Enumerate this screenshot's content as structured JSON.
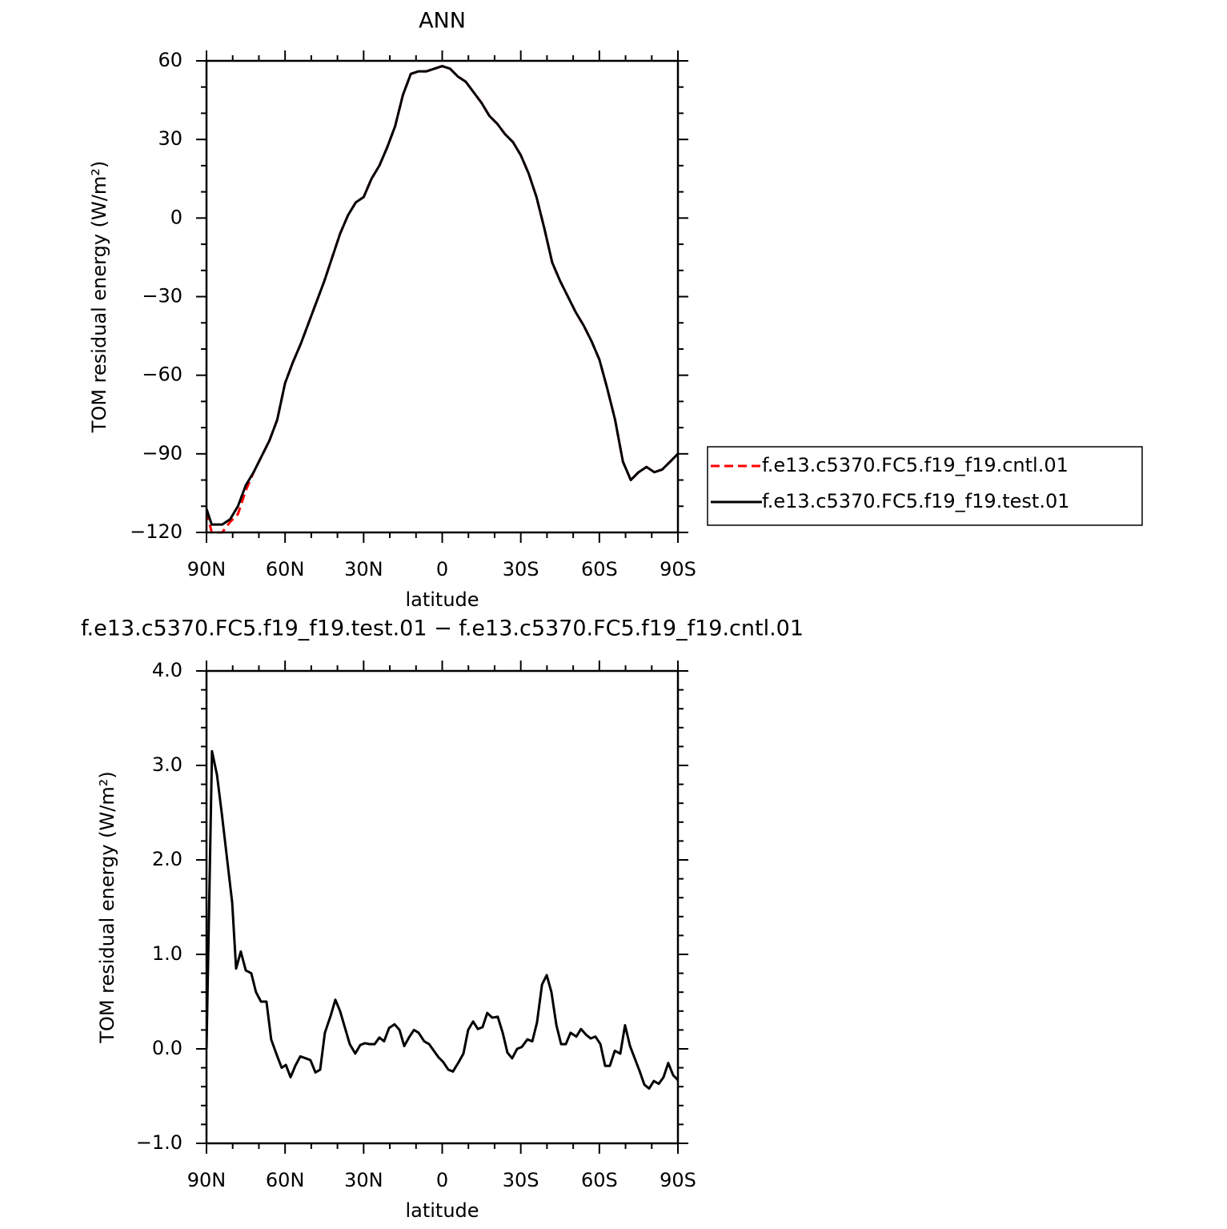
{
  "chart_data": [
    {
      "type": "line",
      "title": "ANN",
      "x_label": "latitude",
      "y_label": "TOM residual energy (W/m²)",
      "x": [
        90,
        88,
        84,
        81,
        78,
        75,
        72,
        69,
        66,
        63,
        60,
        57,
        54,
        51,
        48,
        45,
        42,
        39,
        36,
        33,
        30,
        27,
        24,
        21,
        18,
        15,
        12,
        9,
        6,
        3,
        0,
        -3,
        -6,
        -9,
        -12,
        -15,
        -18,
        -21,
        -24,
        -27,
        -30,
        -33,
        -36,
        -39,
        -42,
        -45,
        -48,
        -51,
        -54,
        -57,
        -60,
        -63,
        -66,
        -69,
        -72,
        -75,
        -78,
        -81,
        -84,
        -87,
        -90
      ],
      "series": [
        {
          "name": "f.e13.c5370.FC5.f19_f19.cntl.01",
          "color": "#ff0000",
          "line_style": "dashed",
          "values": [
            -112,
            -120,
            -120,
            -116,
            -113,
            -104,
            -97,
            -91,
            -85,
            -77,
            -63,
            -55,
            -48,
            -40,
            -32,
            -24,
            -15,
            -6,
            1,
            6,
            8,
            15,
            20,
            27,
            35,
            47,
            55,
            56,
            56,
            57,
            58,
            57,
            54,
            52,
            48,
            44,
            39,
            36,
            32,
            29,
            24,
            17,
            8,
            -4,
            -17,
            -24,
            -30,
            -36,
            -41,
            -47,
            -54,
            -65,
            -77,
            -93,
            -100,
            -97,
            -95,
            -97,
            -96,
            -93,
            -90
          ]
        },
        {
          "name": "f.e13.c5370.FC5.f19_f19.test.01",
          "color": "#000000",
          "line_style": "solid",
          "values": [
            -111,
            -117,
            -117,
            -115,
            -110,
            -102,
            -97,
            -91,
            -85,
            -77,
            -63,
            -55,
            -48,
            -40,
            -32,
            -24,
            -15,
            -6,
            1,
            6,
            8,
            15,
            20,
            27,
            35,
            47,
            55,
            56,
            56,
            57,
            58,
            57,
            54,
            52,
            48,
            44,
            39,
            36,
            32,
            29,
            24,
            17,
            8,
            -4,
            -17,
            -24,
            -30,
            -36,
            -41,
            -47,
            -54,
            -65,
            -77,
            -93,
            -100,
            -97,
            -95,
            -97,
            -96,
            -93,
            -90
          ]
        }
      ],
      "xlim": [
        90,
        -90
      ],
      "xticks": [
        {
          "value": 90,
          "label": "90N"
        },
        {
          "value": 60,
          "label": "60N"
        },
        {
          "value": 30,
          "label": "30N"
        },
        0,
        {
          "value": -30,
          "label": "30S"
        },
        {
          "value": -60,
          "label": "60S"
        },
        {
          "value": -90,
          "label": "90S"
        }
      ],
      "ylim": [
        -120,
        60
      ],
      "yticks": [
        {
          "value": -120,
          "label": "−120"
        },
        {
          "value": -90,
          "label": "−90"
        },
        {
          "value": -60,
          "label": "−60"
        },
        {
          "value": -30,
          "label": "−30"
        },
        0,
        30,
        60
      ],
      "legend": "right"
    },
    {
      "type": "line",
      "title": "f.e13.c5370.FC5.f19_f19.test.01 − f.e13.c5370.FC5.f19_f19.cntl.01",
      "x_label": "latitude",
      "y_label": "TOM residual energy (W/m²)",
      "x": [
        90,
        87.9,
        86,
        84.2,
        82.1,
        80.2,
        78.7,
        76.9,
        75,
        72.9,
        71.1,
        69.2,
        67.1,
        65.3,
        63.1,
        61.3,
        59.7,
        57.9,
        56.1,
        54.2,
        52.1,
        50.3,
        48.4,
        46.6,
        44.8,
        42.6,
        40.8,
        39,
        37.1,
        35.3,
        33.2,
        31.3,
        29.5,
        27.7,
        25.8,
        24,
        22.2,
        20.3,
        18.2,
        16.3,
        14.5,
        12.7,
        10.8,
        9,
        6.9,
        5,
        3.2,
        1.4,
        -0.4,
        -2.3,
        -4.1,
        -6.3,
        -8.1,
        -9.9,
        -11.8,
        -13.6,
        -15.4,
        -17.2,
        -19.1,
        -21.2,
        -23.1,
        -24.9,
        -26.7,
        -28.6,
        -30.4,
        -32.5,
        -34.4,
        -36.2,
        -38.1,
        -39.9,
        -41.7,
        -43.6,
        -45.4,
        -47.2,
        -49,
        -51.2,
        -53,
        -54.9,
        -56.7,
        -58.5,
        -60.4,
        -62.2,
        -64,
        -65.9,
        -68,
        -69.8,
        -71.7,
        -73.5,
        -75.3,
        -77.2,
        -79,
        -80.8,
        -82.7,
        -84.5,
        -86.3,
        -88.2,
        -90
      ],
      "series": [
        {
          "color": "#000000",
          "line_style": "solid",
          "values": [
            0,
            3.15,
            2.9,
            2.5,
            2.0,
            1.55,
            0.85,
            1.03,
            0.83,
            0.8,
            0.6,
            0.5,
            0.5,
            0.1,
            -0.07,
            -0.2,
            -0.17,
            -0.3,
            -0.18,
            -0.08,
            -0.1,
            -0.12,
            -0.25,
            -0.22,
            0.17,
            0.35,
            0.52,
            0.4,
            0.22,
            0.05,
            -0.05,
            0.04,
            0.06,
            0.05,
            0.05,
            0.12,
            0.08,
            0.22,
            0.26,
            0.2,
            0.03,
            0.12,
            0.2,
            0.17,
            0.08,
            0.05,
            -0.02,
            -0.09,
            -0.14,
            -0.22,
            -0.24,
            -0.14,
            -0.05,
            0.2,
            0.29,
            0.21,
            0.23,
            0.38,
            0.33,
            0.34,
            0.17,
            -0.04,
            -0.1,
            0.0,
            0.02,
            0.1,
            0.08,
            0.28,
            0.68,
            0.78,
            0.6,
            0.25,
            0.05,
            0.05,
            0.17,
            0.13,
            0.21,
            0.15,
            0.11,
            0.13,
            0.05,
            -0.18,
            -0.18,
            -0.02,
            -0.05,
            0.25,
            0.03,
            -0.1,
            -0.23,
            -0.38,
            -0.42,
            -0.34,
            -0.37,
            -0.3,
            -0.15,
            -0.28,
            -0.33
          ]
        }
      ],
      "xlim": [
        90,
        -90
      ],
      "xticks": [
        {
          "value": 90,
          "label": "90N"
        },
        {
          "value": 60,
          "label": "60N"
        },
        {
          "value": 30,
          "label": "30N"
        },
        0,
        {
          "value": -30,
          "label": "30S"
        },
        {
          "value": -60,
          "label": "60S"
        },
        {
          "value": -90,
          "label": "90S"
        }
      ],
      "ylim": [
        -1,
        4
      ],
      "yticks": [
        {
          "value": -1,
          "label": "−1.0"
        },
        {
          "value": 0,
          "label": "0.0"
        },
        {
          "value": 1,
          "label": "1.0"
        },
        {
          "value": 2,
          "label": "2.0"
        },
        {
          "value": 3,
          "label": "3.0"
        },
        {
          "value": 4,
          "label": "4.0"
        }
      ]
    }
  ]
}
